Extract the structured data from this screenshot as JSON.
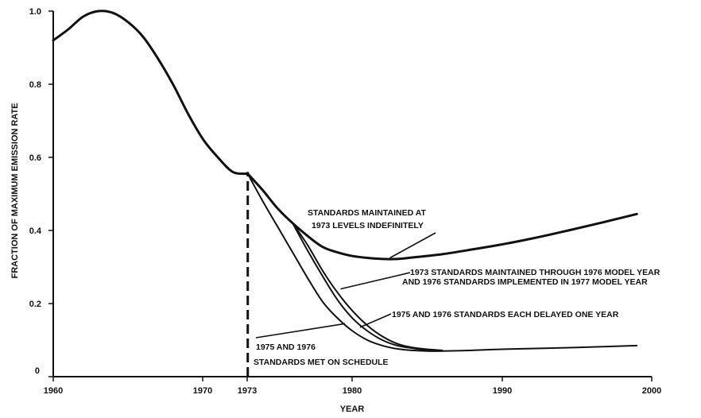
{
  "chart_data": {
    "type": "line",
    "title": "",
    "xlabel": "YEAR",
    "ylabel": "FRACTION OF MAXIMUM EMISSION RATE",
    "xlim": [
      1960,
      2000
    ],
    "ylim": [
      0,
      1.0
    ],
    "grid": false,
    "x_ticks": [
      "1960",
      "1970",
      "1973",
      "1980",
      "1990",
      "2000"
    ],
    "y_ticks": [
      "0",
      "0.2",
      "0.4",
      "0.6",
      "0.8",
      "1.0"
    ],
    "marker_line": {
      "x": 1973,
      "style": "dashed"
    },
    "series": [
      {
        "x": [
          1960,
          1961,
          1962,
          1963,
          1964,
          1965,
          1966,
          1967,
          1968,
          1969,
          1970,
          1971,
          1972,
          1973
        ],
        "y": [
          0.92,
          0.95,
          0.985,
          1.0,
          0.995,
          0.97,
          0.93,
          0.87,
          0.8,
          0.72,
          0.65,
          0.6,
          0.56,
          0.555
        ]
      },
      {
        "x": [
          1973,
          1974,
          1975,
          1976,
          1977,
          1978,
          1979,
          1980,
          1981,
          1982,
          1983,
          1984,
          1986,
          1988,
          1990,
          1992,
          1994,
          1996,
          1998,
          1999
        ],
        "y": [
          0.555,
          0.51,
          0.46,
          0.42,
          0.385,
          0.355,
          0.34,
          0.33,
          0.325,
          0.322,
          0.322,
          0.326,
          0.335,
          0.348,
          0.362,
          0.378,
          0.396,
          0.415,
          0.435,
          0.445
        ]
      },
      {
        "x": [
          1976,
          1977,
          1978,
          1979,
          1980,
          1981,
          1982,
          1983,
          1984,
          1985,
          1986
        ],
        "y": [
          0.42,
          0.36,
          0.29,
          0.23,
          0.18,
          0.14,
          0.11,
          0.09,
          0.08,
          0.075,
          0.072
        ]
      },
      {
        "x": [
          1976,
          1977,
          1978,
          1979,
          1980,
          1981,
          1982,
          1983,
          1984,
          1985,
          1986
        ],
        "y": [
          0.42,
          0.345,
          0.275,
          0.21,
          0.16,
          0.125,
          0.1,
          0.085,
          0.078,
          0.073,
          0.071
        ]
      },
      {
        "x": [
          1973,
          1974,
          1975,
          1976,
          1977,
          1978,
          1979,
          1980,
          1981,
          1982,
          1983,
          1984,
          1985,
          1986,
          1988,
          1990,
          1995,
          1999
        ],
        "y": [
          0.555,
          0.48,
          0.41,
          0.34,
          0.27,
          0.205,
          0.16,
          0.125,
          0.1,
          0.085,
          0.076,
          0.072,
          0.07,
          0.07,
          0.072,
          0.075,
          0.08,
          0.085
        ]
      }
    ],
    "annotations": [
      {
        "lines": [
          "STANDARDS MAINTAINED AT",
          "1973 LEVELS INDEFINITELY"
        ],
        "arrow_to": [
          1982.5,
          0.325
        ]
      },
      {
        "lines": [
          "1973 STANDARDS MAINTAINED THROUGH 1976 MODEL YEAR",
          "AND 1976 STANDARDS IMPLEMENTED IN 1977 MODEL YEAR"
        ],
        "arrow_to": [
          1979.2,
          0.24
        ]
      },
      {
        "lines": [
          "1975 AND 1976 STANDARDS EACH DELAYED ONE YEAR"
        ],
        "arrow_to": [
          1980.5,
          0.135
        ]
      },
      {
        "lines": [
          "1975 AND 1976",
          "STANDARDS MET ON SCHEDULE"
        ],
        "arrow_to": [
          1979.5,
          0.145
        ]
      }
    ]
  }
}
